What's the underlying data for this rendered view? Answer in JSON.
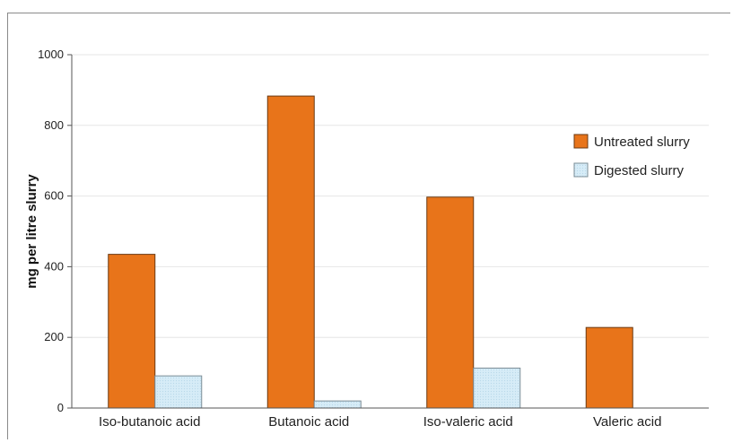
{
  "chart_data": {
    "type": "bar",
    "title": "",
    "xlabel": "",
    "ylabel": "mg per litre slurry",
    "ylim": [
      0,
      1000
    ],
    "yticks": [
      0,
      200,
      400,
      600,
      800,
      1000
    ],
    "grid": true,
    "legend_position": "right",
    "categories": [
      "Iso-butanoic acid",
      "Butanoic acid",
      "Iso-valeric acid",
      "Valeric acid"
    ],
    "series": [
      {
        "name": "Untreated slurry",
        "color": "#e8741a",
        "values": [
          435,
          883,
          597,
          228
        ]
      },
      {
        "name": "Digested slurry",
        "color": "#cfe8f5",
        "values": [
          91,
          20,
          113,
          0
        ]
      }
    ]
  }
}
